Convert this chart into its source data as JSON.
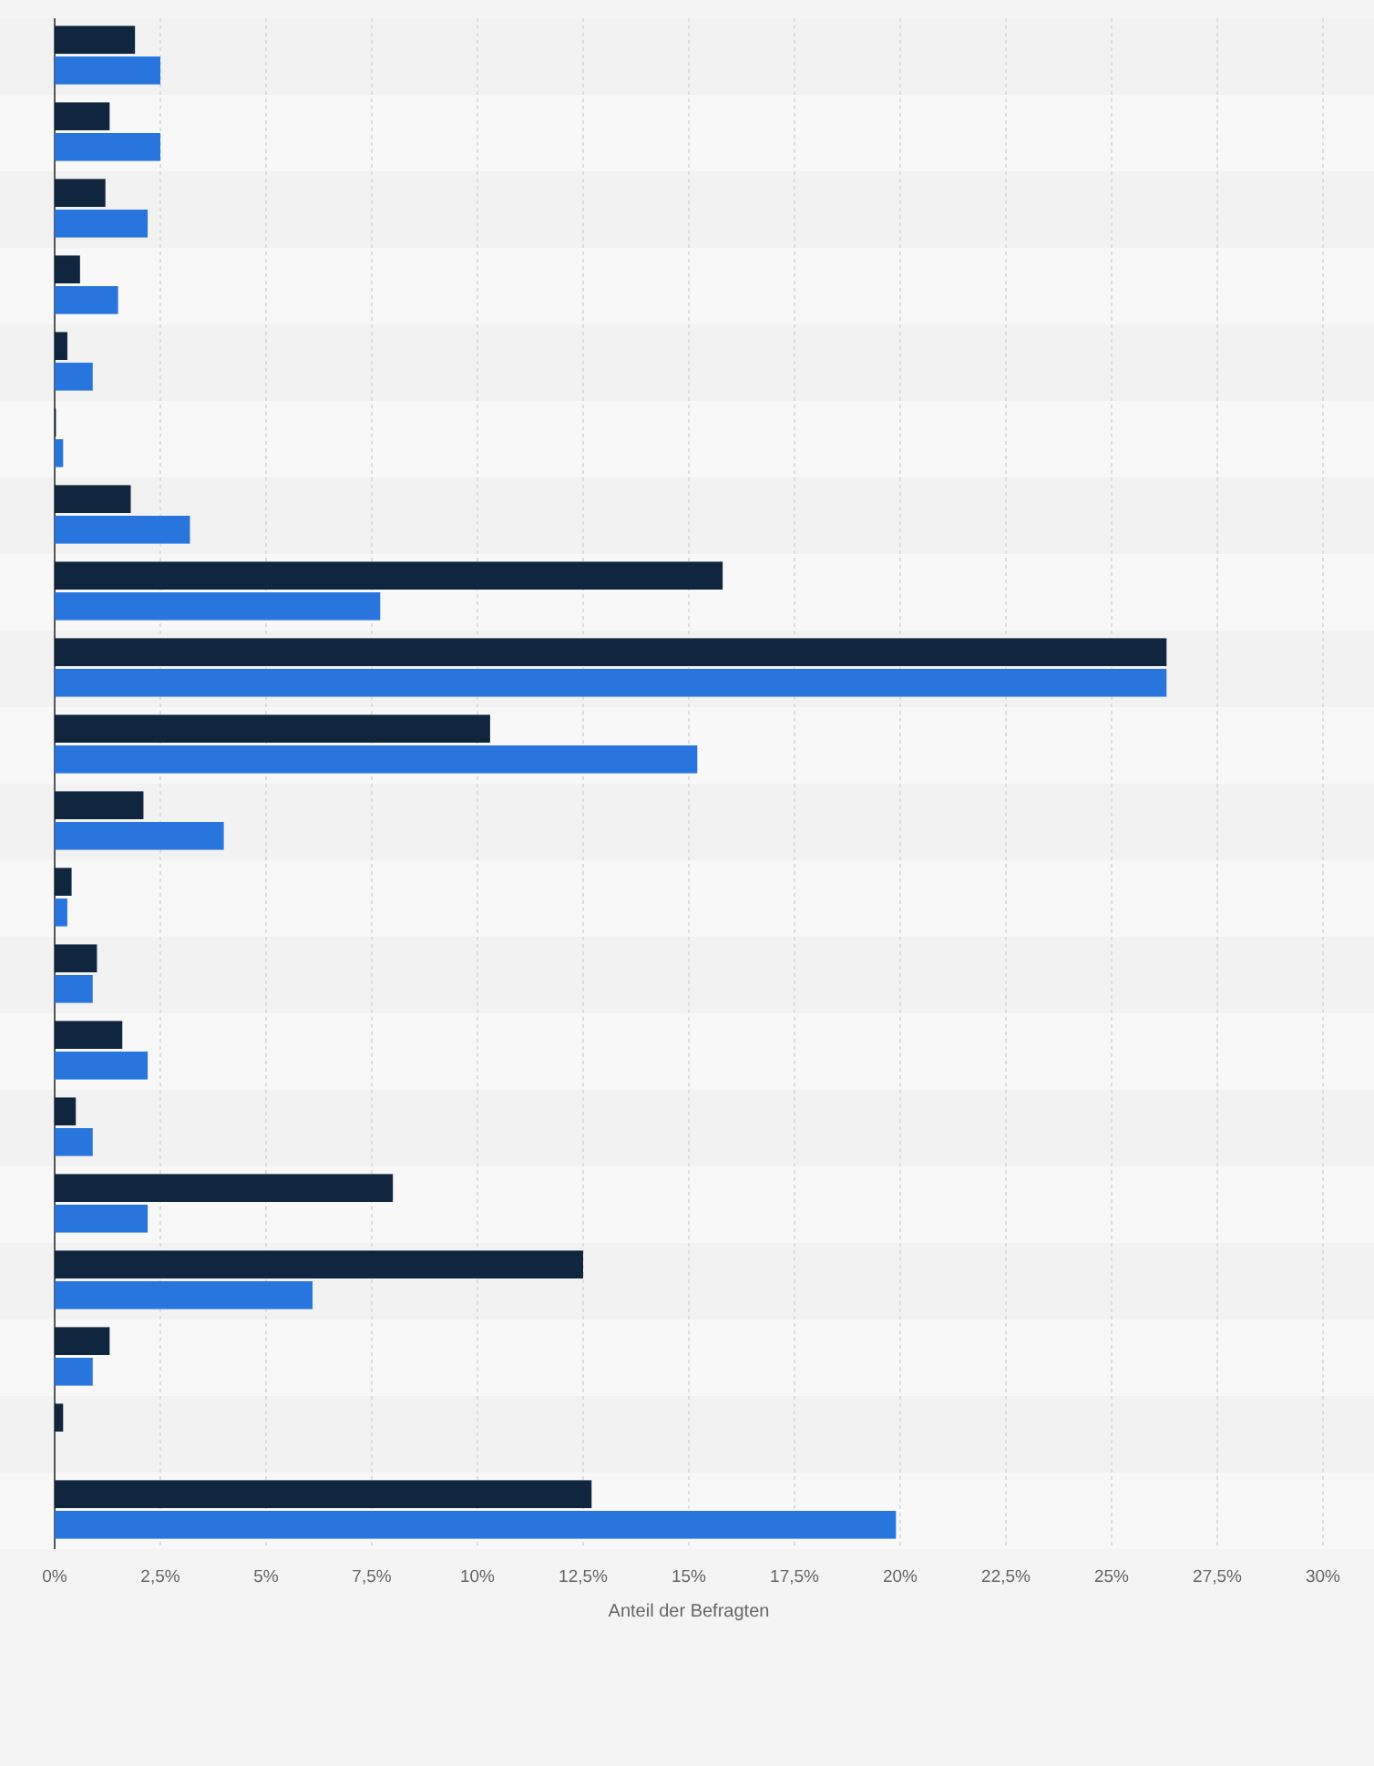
{
  "chart_data": {
    "type": "bar",
    "orientation": "horizontal",
    "xlabel": "Anteil der Befragten",
    "categories": [
      null,
      null,
      null,
      null,
      null,
      null,
      null,
      null,
      null,
      null,
      null,
      null,
      null,
      null,
      null,
      null,
      null,
      null,
      null,
      null
    ],
    "series": [
      {
        "color": "#10263f",
        "values": [
          1.9,
          1.3,
          1.2,
          0.6,
          0.3,
          0.03,
          1.8,
          15.8,
          26.3,
          10.3,
          2.1,
          0.4,
          1.0,
          1.6,
          0.5,
          8.0,
          12.5,
          1.3,
          0.2,
          12.7
        ]
      },
      {
        "color": "#2876dd",
        "values": [
          2.5,
          2.5,
          2.2,
          1.5,
          0.9,
          0.2,
          3.2,
          7.7,
          26.3,
          15.2,
          4.0,
          0.3,
          0.9,
          2.2,
          0.9,
          2.2,
          6.1,
          0.9,
          null,
          19.9
        ]
      }
    ],
    "xlim": [
      0,
      30
    ],
    "xticks": [
      {
        "value": 0,
        "label": "0%"
      },
      {
        "value": 2.5,
        "label": "2,5%"
      },
      {
        "value": 5,
        "label": "5%"
      },
      {
        "value": 7.5,
        "label": "7,5%"
      },
      {
        "value": 10,
        "label": "10%"
      },
      {
        "value": 12.5,
        "label": "12,5%"
      },
      {
        "value": 15,
        "label": "15%"
      },
      {
        "value": 17.5,
        "label": "17,5%"
      },
      {
        "value": 20,
        "label": "20%"
      },
      {
        "value": 22.5,
        "label": "22,5%"
      },
      {
        "value": 25,
        "label": "25%"
      },
      {
        "value": 27.5,
        "label": "27,5%"
      },
      {
        "value": 30,
        "label": "30%"
      }
    ],
    "grid": "x"
  }
}
